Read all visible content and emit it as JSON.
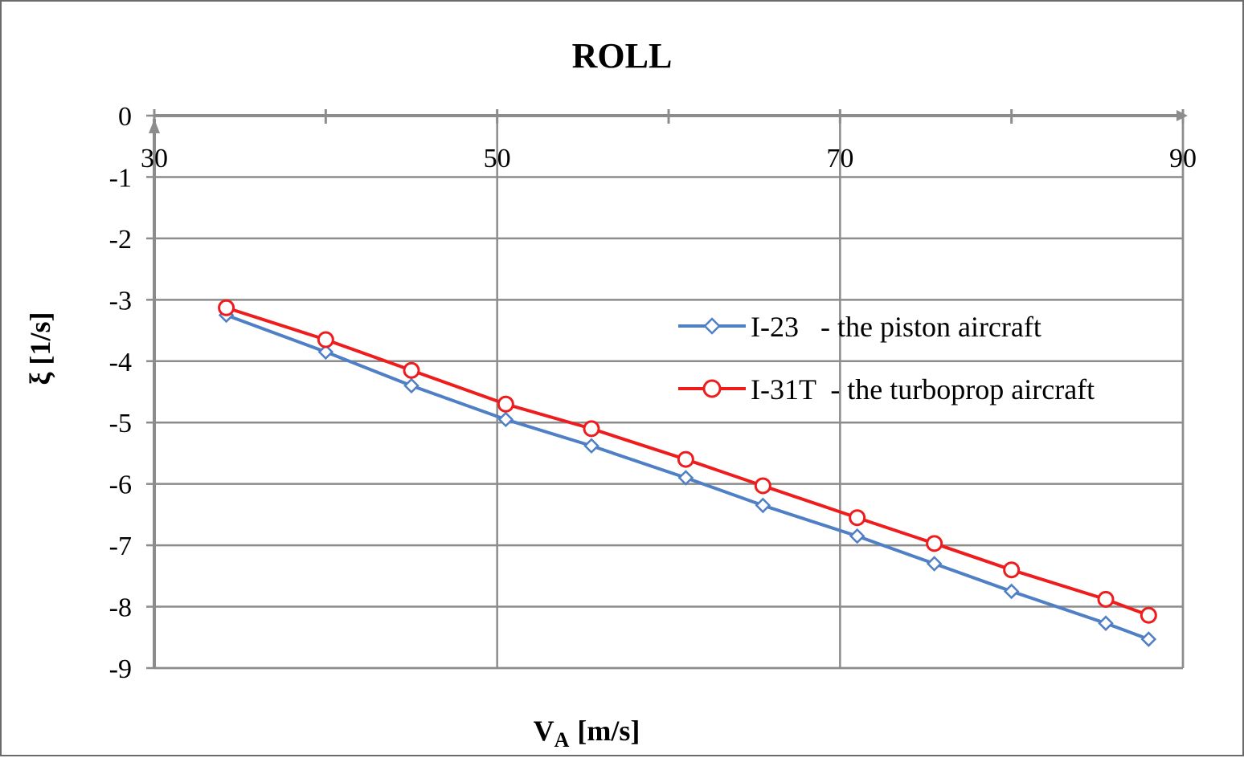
{
  "chart_data": {
    "type": "line",
    "title": "ROLL",
    "xlabel": {
      "main": "V",
      "sub": "A",
      "unit": "[m/s]"
    },
    "ylabel": "ξ  [1/s]",
    "xlim": [
      30,
      90
    ],
    "ylim": [
      -9,
      0
    ],
    "x_ticks": [
      30,
      50,
      70,
      90
    ],
    "x_tick_labels": [
      "30",
      "50",
      "70",
      "90"
    ],
    "x_minor_ticks": [
      40,
      60,
      80
    ],
    "y_ticks": [
      0,
      -1,
      -2,
      -3,
      -4,
      -5,
      -6,
      -7,
      -8,
      -9
    ],
    "y_tick_labels": [
      "0",
      "-1",
      "-2",
      "-3",
      "-4",
      "-5",
      "-6",
      "-7",
      "-8",
      "-9"
    ],
    "grid": true,
    "x_axis_position": "top",
    "legend_position": "right",
    "series": [
      {
        "name": "I-23   - the piston aircraft",
        "color": "#4f7fc4",
        "marker": "diamond",
        "x": [
          34.2,
          40.0,
          45.0,
          50.5,
          55.5,
          61.0,
          65.5,
          71.0,
          75.5,
          80.0,
          85.5,
          88.0
        ],
        "values": [
          -3.25,
          -3.85,
          -4.4,
          -4.95,
          -5.38,
          -5.9,
          -6.35,
          -6.85,
          -7.3,
          -7.75,
          -8.27,
          -8.53
        ]
      },
      {
        "name": "I-31T  - the turboprop aircraft",
        "color": "#ee1c1c",
        "marker": "circle",
        "x": [
          34.2,
          40.0,
          45.0,
          50.5,
          55.5,
          61.0,
          65.5,
          71.0,
          75.5,
          80.0,
          85.5,
          88.0
        ],
        "values": [
          -3.13,
          -3.65,
          -4.15,
          -4.7,
          -5.1,
          -5.6,
          -6.03,
          -6.55,
          -6.97,
          -7.4,
          -7.88,
          -8.14
        ]
      }
    ]
  }
}
